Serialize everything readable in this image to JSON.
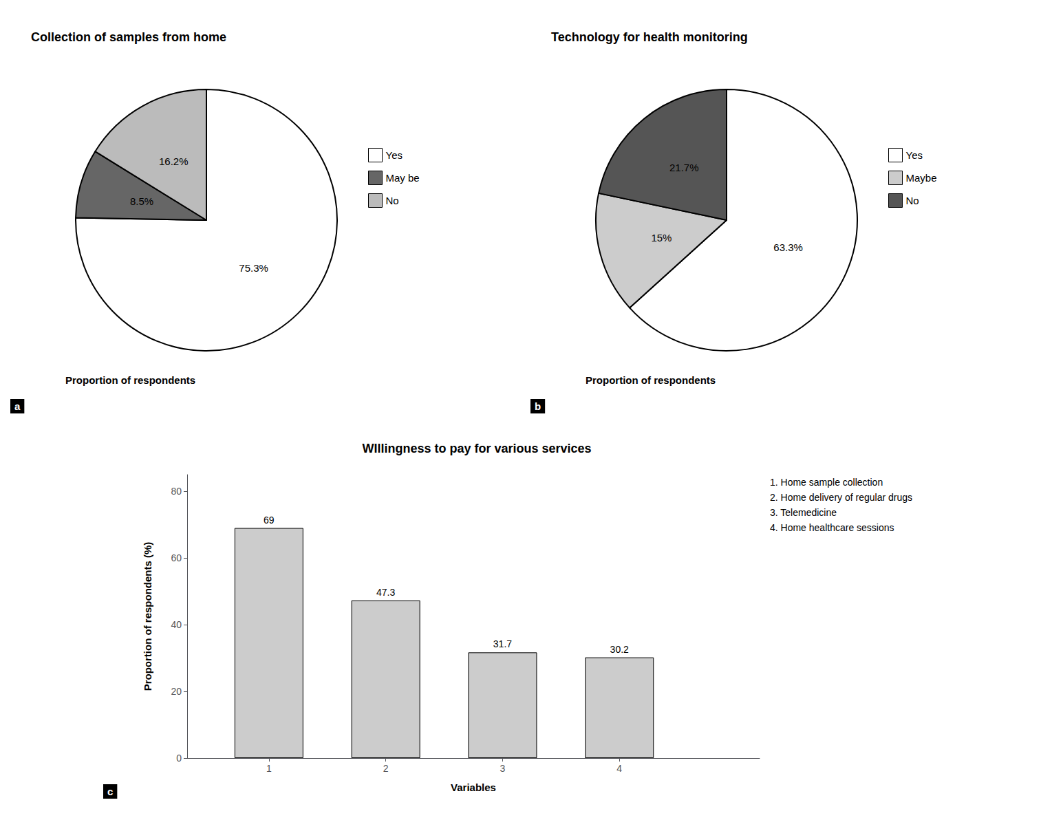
{
  "chart_data": [
    {
      "type": "pie",
      "title": "Collection of samples from home",
      "categories": [
        "Yes",
        "May be",
        "No"
      ],
      "values": [
        75.3,
        8.5,
        16.2
      ],
      "value_labels": [
        "75.3%",
        "8.5%",
        "16.2%"
      ],
      "colors": [
        "#ffffff",
        "#666666",
        "#bbbbbb"
      ],
      "data_labels": true,
      "legend": "right",
      "annotations": [
        "Proportion of respondents"
      ],
      "panel_label": "a"
    },
    {
      "type": "pie",
      "title": "Technology for health monitoring",
      "categories": [
        "Yes",
        "Maybe",
        "No"
      ],
      "values": [
        63.3,
        15.0,
        21.7
      ],
      "value_labels": [
        "63.3%",
        "15%",
        "21.7%"
      ],
      "colors": [
        "#ffffff",
        "#cccccc",
        "#555555"
      ],
      "data_labels": true,
      "legend": "right",
      "annotations": [
        "Proportion of respondents"
      ],
      "panel_label": "b"
    },
    {
      "type": "bar",
      "title": "WIllingness to pay for various services",
      "x": [
        1,
        2,
        3,
        4
      ],
      "values": [
        69,
        47.3,
        31.7,
        30.2
      ],
      "color": "#cccccc",
      "xlabel": "Variables",
      "ylabel": "Proportion of respondents (%)",
      "xlim": [
        0.3,
        5.2
      ],
      "xticks": [
        1,
        2,
        3,
        4
      ],
      "ylim": [
        0,
        85
      ],
      "yticks": [
        0,
        20,
        40,
        60,
        80
      ],
      "grid": false,
      "data_labels": true,
      "annotations": [
        "1. Home sample collection",
        "2. Home delivery of regular drugs",
        "3. Telemedicine",
        "4. Home healthcare sessions"
      ],
      "panel_label": "c"
    }
  ]
}
